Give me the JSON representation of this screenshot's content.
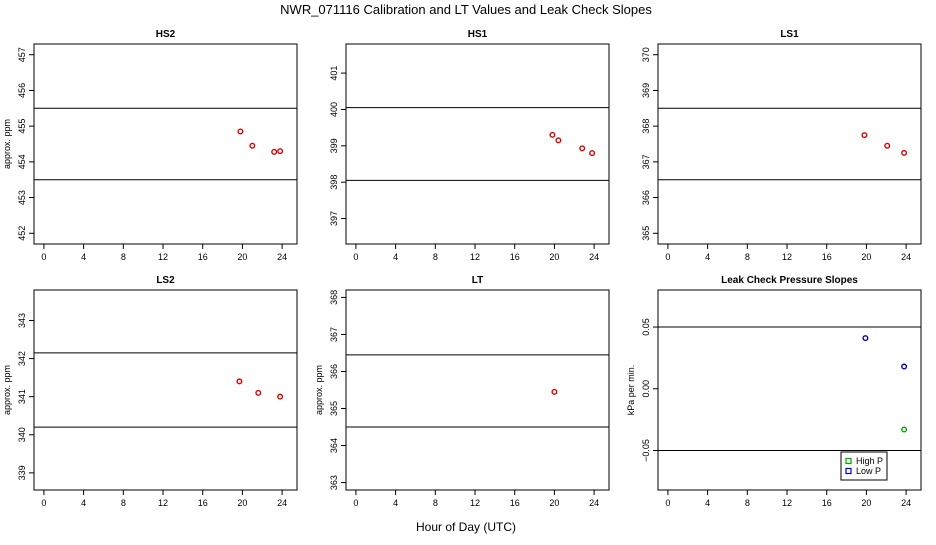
{
  "figure": {
    "title": "NWR_071116  Calibration and LT Values and Leak Check Slopes",
    "xlabel": "Hour of Day (UTC)"
  },
  "colors": {
    "primary": "#d40000",
    "high_p": "#00a800",
    "low_p": "#0000c8",
    "axis": "#000000"
  },
  "chart_data": [
    {
      "type": "scatter",
      "title": "HS2",
      "ylabel": "approx. ppm",
      "xlim": [
        -1,
        25.5
      ],
      "ylim": [
        451.7,
        457.3
      ],
      "xticks": [
        0,
        4,
        8,
        12,
        16,
        20,
        24
      ],
      "yticks": [
        452,
        453,
        454,
        455,
        456,
        457
      ],
      "hlines": [
        455.5,
        453.5
      ],
      "x": [
        19.8,
        21.0,
        23.2,
        23.8
      ],
      "y": [
        454.85,
        454.45,
        454.28,
        454.3
      ],
      "color": "#d40000"
    },
    {
      "type": "scatter",
      "title": "HS1",
      "ylabel": "",
      "xlim": [
        -1,
        25.5
      ],
      "ylim": [
        396.3,
        401.8
      ],
      "xticks": [
        0,
        4,
        8,
        12,
        16,
        20,
        24
      ],
      "yticks": [
        397,
        398,
        399,
        400,
        401
      ],
      "hlines": [
        400.05,
        398.05
      ],
      "x": [
        19.8,
        20.4,
        22.8,
        23.8
      ],
      "y": [
        399.3,
        399.15,
        398.93,
        398.8
      ],
      "color": "#d40000"
    },
    {
      "type": "scatter",
      "title": "LS1",
      "ylabel": "",
      "xlim": [
        -1,
        25.5
      ],
      "ylim": [
        364.7,
        370.3
      ],
      "xticks": [
        0,
        4,
        8,
        12,
        16,
        20,
        24
      ],
      "yticks": [
        365,
        366,
        367,
        368,
        369,
        370
      ],
      "hlines": [
        368.5,
        366.5
      ],
      "x": [
        19.8,
        22.1,
        23.8
      ],
      "y": [
        367.75,
        367.45,
        367.25
      ],
      "color": "#d40000"
    },
    {
      "type": "scatter",
      "title": "LS2",
      "ylabel": "approx. ppm",
      "xlim": [
        -1,
        25.5
      ],
      "ylim": [
        338.55,
        343.8
      ],
      "xticks": [
        0,
        4,
        8,
        12,
        16,
        20,
        24
      ],
      "yticks": [
        339,
        340,
        341,
        342,
        343
      ],
      "hlines": [
        342.15,
        340.2
      ],
      "x": [
        19.7,
        21.6,
        23.8
      ],
      "y": [
        341.4,
        341.1,
        341.0
      ],
      "color": "#d40000"
    },
    {
      "type": "scatter",
      "title": "LT",
      "ylabel": "approx. ppm",
      "xlim": [
        -1,
        25.5
      ],
      "ylim": [
        362.8,
        368.2
      ],
      "xticks": [
        0,
        4,
        8,
        12,
        16,
        20,
        24
      ],
      "yticks": [
        363,
        364,
        365,
        366,
        367,
        368
      ],
      "hlines": [
        366.45,
        364.5
      ],
      "x": [
        20.0
      ],
      "y": [
        365.45
      ],
      "color": "#d40000"
    },
    {
      "type": "scatter",
      "title": "Leak Check Pressure Slopes",
      "ylabel": "kPa per min.",
      "xlim": [
        -1,
        25.5
      ],
      "ylim": [
        -0.082,
        0.08
      ],
      "xticks": [
        0,
        4,
        8,
        12,
        16,
        20,
        24
      ],
      "yticks": [
        -0.05,
        0.0,
        0.05
      ],
      "ytick_labels": [
        "−0.05",
        "0.00",
        "0.05"
      ],
      "hlines": [
        0.05,
        -0.05
      ],
      "series": [
        {
          "name": "High P",
          "color": "#00a800",
          "x": [
            23.8
          ],
          "y": [
            -0.033
          ]
        },
        {
          "name": "Low P",
          "color": "#0000c8",
          "x": [
            19.9,
            23.8
          ],
          "y": [
            0.041,
            0.018
          ]
        }
      ],
      "legend": "bottom-right"
    }
  ]
}
